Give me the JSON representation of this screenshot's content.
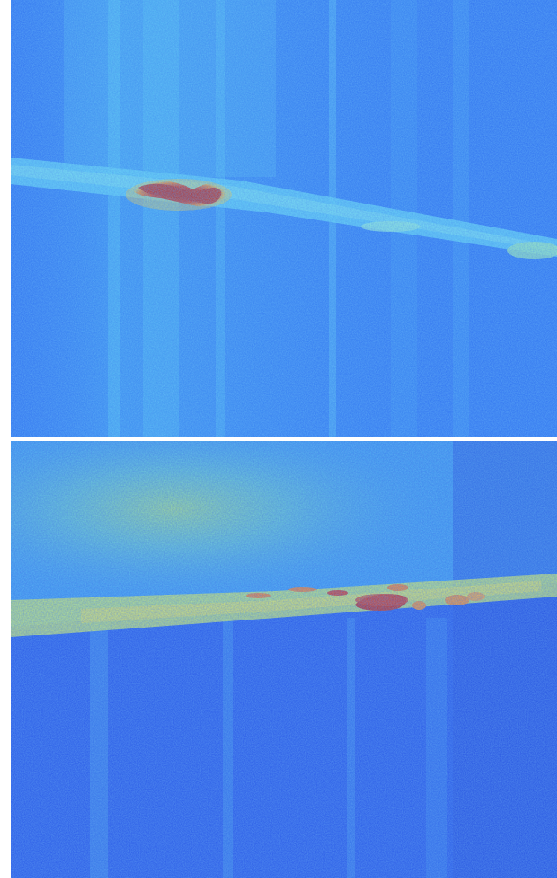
{
  "figure": {
    "panels": [
      {
        "id": "top",
        "colors": {
          "background": "#2a6ef0",
          "band": "#63d6f2",
          "hot_core": "#c81e0a",
          "hot_edge": "#ff7a1a",
          "highlight": "#ffd23a"
        }
      },
      {
        "id": "bottom",
        "colors": {
          "background": "#1f4fe6",
          "glow": "#9fe07a",
          "band": "#d9ee55",
          "hot_core": "#c81e0a",
          "hot_edge": "#ff7a1a"
        }
      }
    ]
  }
}
